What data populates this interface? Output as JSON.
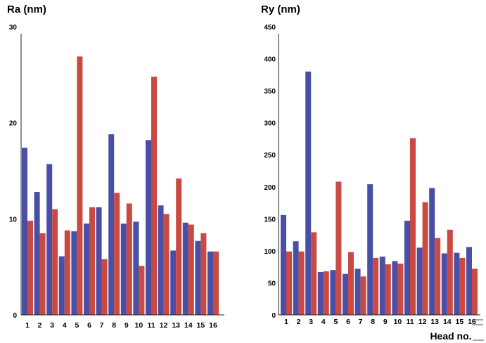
{
  "chart_data": [
    {
      "type": "bar",
      "title": "Ra (nm)",
      "ylim": [
        0,
        30
      ],
      "yticks": [
        0,
        10,
        20,
        30
      ],
      "categories": [
        "1",
        "2",
        "3",
        "4",
        "5",
        "6",
        "7",
        "8",
        "9",
        "10",
        "11",
        "12",
        "13",
        "14",
        "15",
        "16"
      ],
      "series": [
        {
          "color": "#4a4fa6",
          "values": [
            17.4,
            12.8,
            15.7,
            6.1,
            8.7,
            9.5,
            11.2,
            18.8,
            9.5,
            9.7,
            18.2,
            11.4,
            6.7,
            9.6,
            7.7,
            6.6
          ]
        },
        {
          "color": "#c94a43",
          "values": [
            9.8,
            8.5,
            11.0,
            8.8,
            26.9,
            11.2,
            5.8,
            12.7,
            11.6,
            5.1,
            24.8,
            10.5,
            14.2,
            9.4,
            8.5,
            6.6
          ]
        }
      ],
      "xlabel": "",
      "grid": false
    },
    {
      "type": "bar",
      "title": "Ry (nm)",
      "ylim": [
        0,
        450
      ],
      "yticks": [
        0,
        50,
        100,
        150,
        200,
        250,
        300,
        350,
        400,
        450
      ],
      "categories": [
        "1",
        "2",
        "3",
        "4",
        "5",
        "6",
        "7",
        "8",
        "9",
        "10",
        "11",
        "12",
        "13",
        "14",
        "15",
        "16"
      ],
      "series": [
        {
          "color": "#4a4fa6",
          "values": [
            156,
            115,
            380,
            67,
            70,
            64,
            72,
            204,
            91,
            84,
            147,
            105,
            198,
            96,
            97,
            106
          ]
        },
        {
          "color": "#c94a43",
          "values": [
            99,
            99,
            129,
            68,
            208,
            98,
            60,
            89,
            79,
            80,
            276,
            176,
            120,
            133,
            89,
            72
          ]
        }
      ],
      "xlabel": "Head no.",
      "grid": false
    }
  ]
}
